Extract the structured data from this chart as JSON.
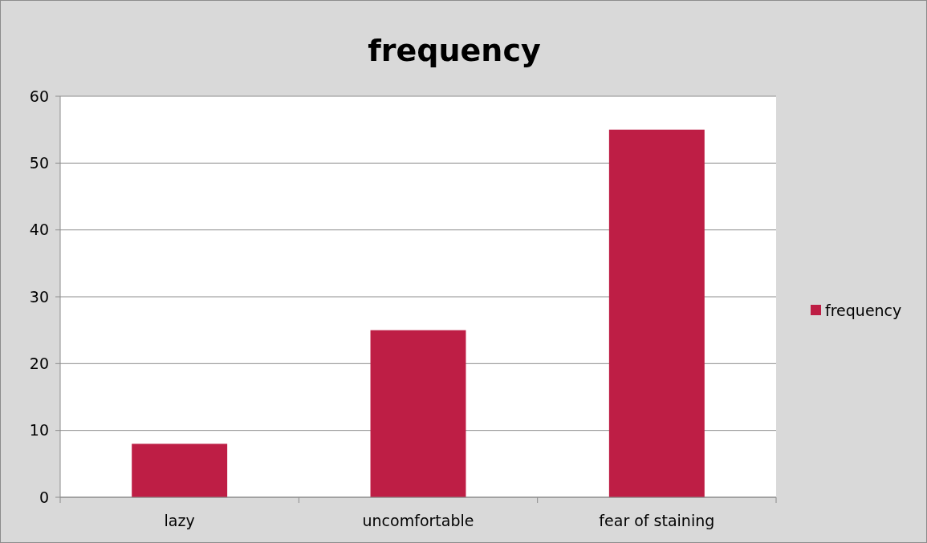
{
  "chart_data": {
    "type": "bar",
    "title": "frequency",
    "categories": [
      "lazy",
      "uncomfortable",
      "fear of staining"
    ],
    "series": [
      {
        "name": "frequency",
        "color": "#be1e45",
        "values": [
          8,
          25,
          55
        ]
      }
    ],
    "ylim": [
      0,
      60
    ],
    "yticks": [
      0,
      10,
      20,
      30,
      40,
      50,
      60
    ],
    "grid": "y",
    "legend": "right"
  }
}
